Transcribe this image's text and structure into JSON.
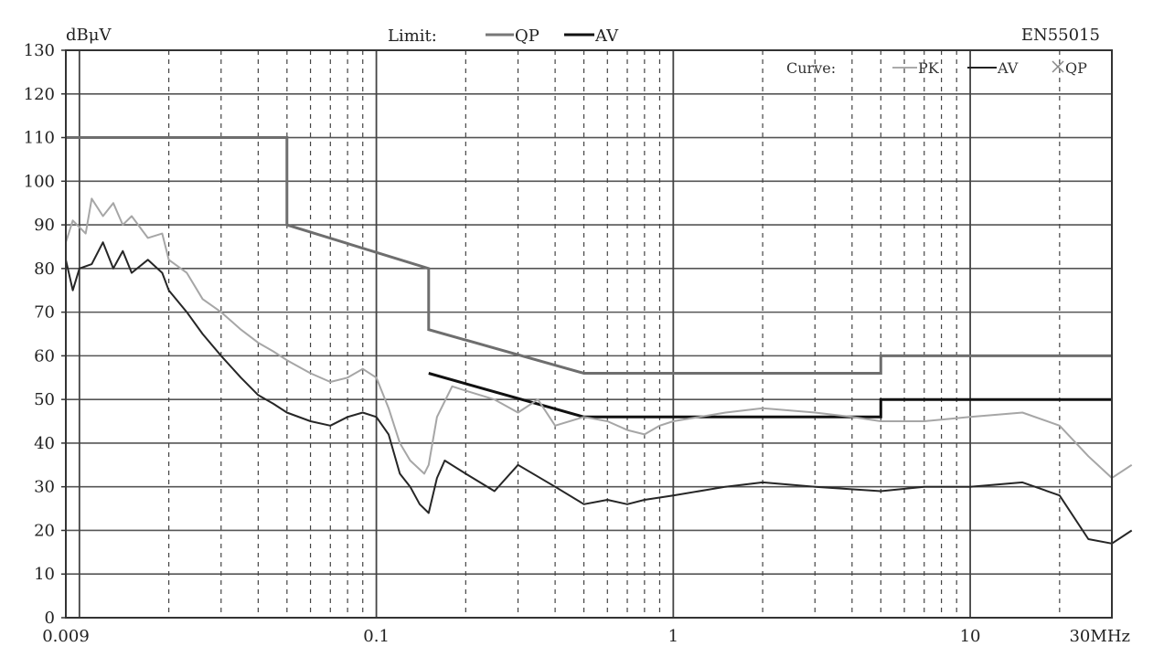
{
  "chart_data": {
    "type": "line",
    "ylabel": "dBμV",
    "standard": "EN55015",
    "x_scale": "log",
    "xlim": [
      0.009,
      30
    ],
    "ylim": [
      0,
      130
    ],
    "x_ticks": [
      {
        "value": 0.009,
        "label": "0.009"
      },
      {
        "value": 0.1,
        "label": "0.1"
      },
      {
        "value": 1,
        "label": "1"
      },
      {
        "value": 10,
        "label": "10"
      },
      {
        "value": 30,
        "label": "30MHz"
      }
    ],
    "y_ticks": [
      0,
      10,
      20,
      30,
      40,
      50,
      60,
      70,
      80,
      90,
      100,
      110,
      120,
      130
    ],
    "limit_legend": {
      "title": "Limit:",
      "entries": [
        {
          "name": "QP",
          "color": "#777777"
        },
        {
          "name": "AV",
          "color": "#111111"
        }
      ]
    },
    "curve_legend": {
      "title": "Curve:",
      "entries": [
        {
          "name": "PK",
          "color": "#aaaaaa",
          "marker": "line"
        },
        {
          "name": "AV",
          "color": "#222222",
          "marker": "line"
        },
        {
          "name": "QP",
          "color": "#888888",
          "marker": "x"
        }
      ]
    },
    "limits": [
      {
        "name": "QP",
        "color": "#6e6e6e",
        "points": [
          [
            0.009,
            110
          ],
          [
            0.05,
            110
          ],
          [
            0.05,
            90
          ],
          [
            0.15,
            80
          ],
          [
            0.15,
            66
          ],
          [
            0.5,
            56
          ],
          [
            5,
            56
          ],
          [
            5,
            60
          ],
          [
            30,
            60
          ]
        ]
      },
      {
        "name": "AV",
        "color": "#111111",
        "points": [
          [
            0.15,
            56
          ],
          [
            0.5,
            46
          ],
          [
            5,
            46
          ],
          [
            5,
            50
          ],
          [
            30,
            50
          ]
        ]
      }
    ],
    "series": [
      {
        "name": "PK",
        "color": "#a6a6a6",
        "points": [
          [
            0.009,
            86
          ],
          [
            0.0095,
            91
          ],
          [
            0.0105,
            88
          ],
          [
            0.011,
            96
          ],
          [
            0.012,
            92
          ],
          [
            0.013,
            95
          ],
          [
            0.014,
            90
          ],
          [
            0.015,
            92
          ],
          [
            0.017,
            87
          ],
          [
            0.019,
            88
          ],
          [
            0.02,
            82
          ],
          [
            0.023,
            79
          ],
          [
            0.026,
            73
          ],
          [
            0.03,
            70
          ],
          [
            0.035,
            66
          ],
          [
            0.04,
            63
          ],
          [
            0.045,
            61
          ],
          [
            0.05,
            59
          ],
          [
            0.06,
            56
          ],
          [
            0.07,
            54
          ],
          [
            0.08,
            55
          ],
          [
            0.09,
            57
          ],
          [
            0.1,
            55
          ],
          [
            0.11,
            48
          ],
          [
            0.12,
            40
          ],
          [
            0.13,
            36
          ],
          [
            0.145,
            33
          ],
          [
            0.15,
            35
          ],
          [
            0.16,
            46
          ],
          [
            0.18,
            53
          ],
          [
            0.2,
            52
          ],
          [
            0.25,
            50
          ],
          [
            0.3,
            47
          ],
          [
            0.35,
            50
          ],
          [
            0.4,
            44
          ],
          [
            0.5,
            46
          ],
          [
            0.6,
            45
          ],
          [
            0.7,
            43
          ],
          [
            0.8,
            42
          ],
          [
            0.9,
            44
          ],
          [
            1,
            45
          ],
          [
            1.5,
            47
          ],
          [
            2,
            48
          ],
          [
            3,
            47
          ],
          [
            4,
            46
          ],
          [
            5,
            45
          ],
          [
            7,
            45
          ],
          [
            10,
            46
          ],
          [
            15,
            47
          ],
          [
            20,
            44
          ],
          [
            25,
            37
          ],
          [
            30,
            32
          ],
          [
            35,
            35
          ]
        ]
      },
      {
        "name": "AV",
        "color": "#262626",
        "points": [
          [
            0.009,
            82
          ],
          [
            0.0095,
            75
          ],
          [
            0.01,
            80
          ],
          [
            0.011,
            81
          ],
          [
            0.012,
            86
          ],
          [
            0.013,
            80
          ],
          [
            0.014,
            84
          ],
          [
            0.015,
            79
          ],
          [
            0.017,
            82
          ],
          [
            0.019,
            79
          ],
          [
            0.02,
            75
          ],
          [
            0.023,
            70
          ],
          [
            0.026,
            65
          ],
          [
            0.03,
            60
          ],
          [
            0.035,
            55
          ],
          [
            0.04,
            51
          ],
          [
            0.045,
            49
          ],
          [
            0.05,
            47
          ],
          [
            0.06,
            45
          ],
          [
            0.07,
            44
          ],
          [
            0.08,
            46
          ],
          [
            0.09,
            47
          ],
          [
            0.1,
            46
          ],
          [
            0.11,
            42
          ],
          [
            0.12,
            33
          ],
          [
            0.13,
            30
          ],
          [
            0.14,
            26
          ],
          [
            0.15,
            24
          ],
          [
            0.16,
            32
          ],
          [
            0.17,
            36
          ],
          [
            0.2,
            33
          ],
          [
            0.25,
            29
          ],
          [
            0.3,
            35
          ],
          [
            0.4,
            30
          ],
          [
            0.5,
            26
          ],
          [
            0.6,
            27
          ],
          [
            0.7,
            26
          ],
          [
            0.8,
            27
          ],
          [
            1,
            28
          ],
          [
            1.5,
            30
          ],
          [
            2,
            31
          ],
          [
            3,
            30
          ],
          [
            5,
            29
          ],
          [
            7,
            30
          ],
          [
            10,
            30
          ],
          [
            15,
            31
          ],
          [
            20,
            28
          ],
          [
            25,
            18
          ],
          [
            30,
            17
          ],
          [
            35,
            20
          ]
        ]
      }
    ]
  }
}
